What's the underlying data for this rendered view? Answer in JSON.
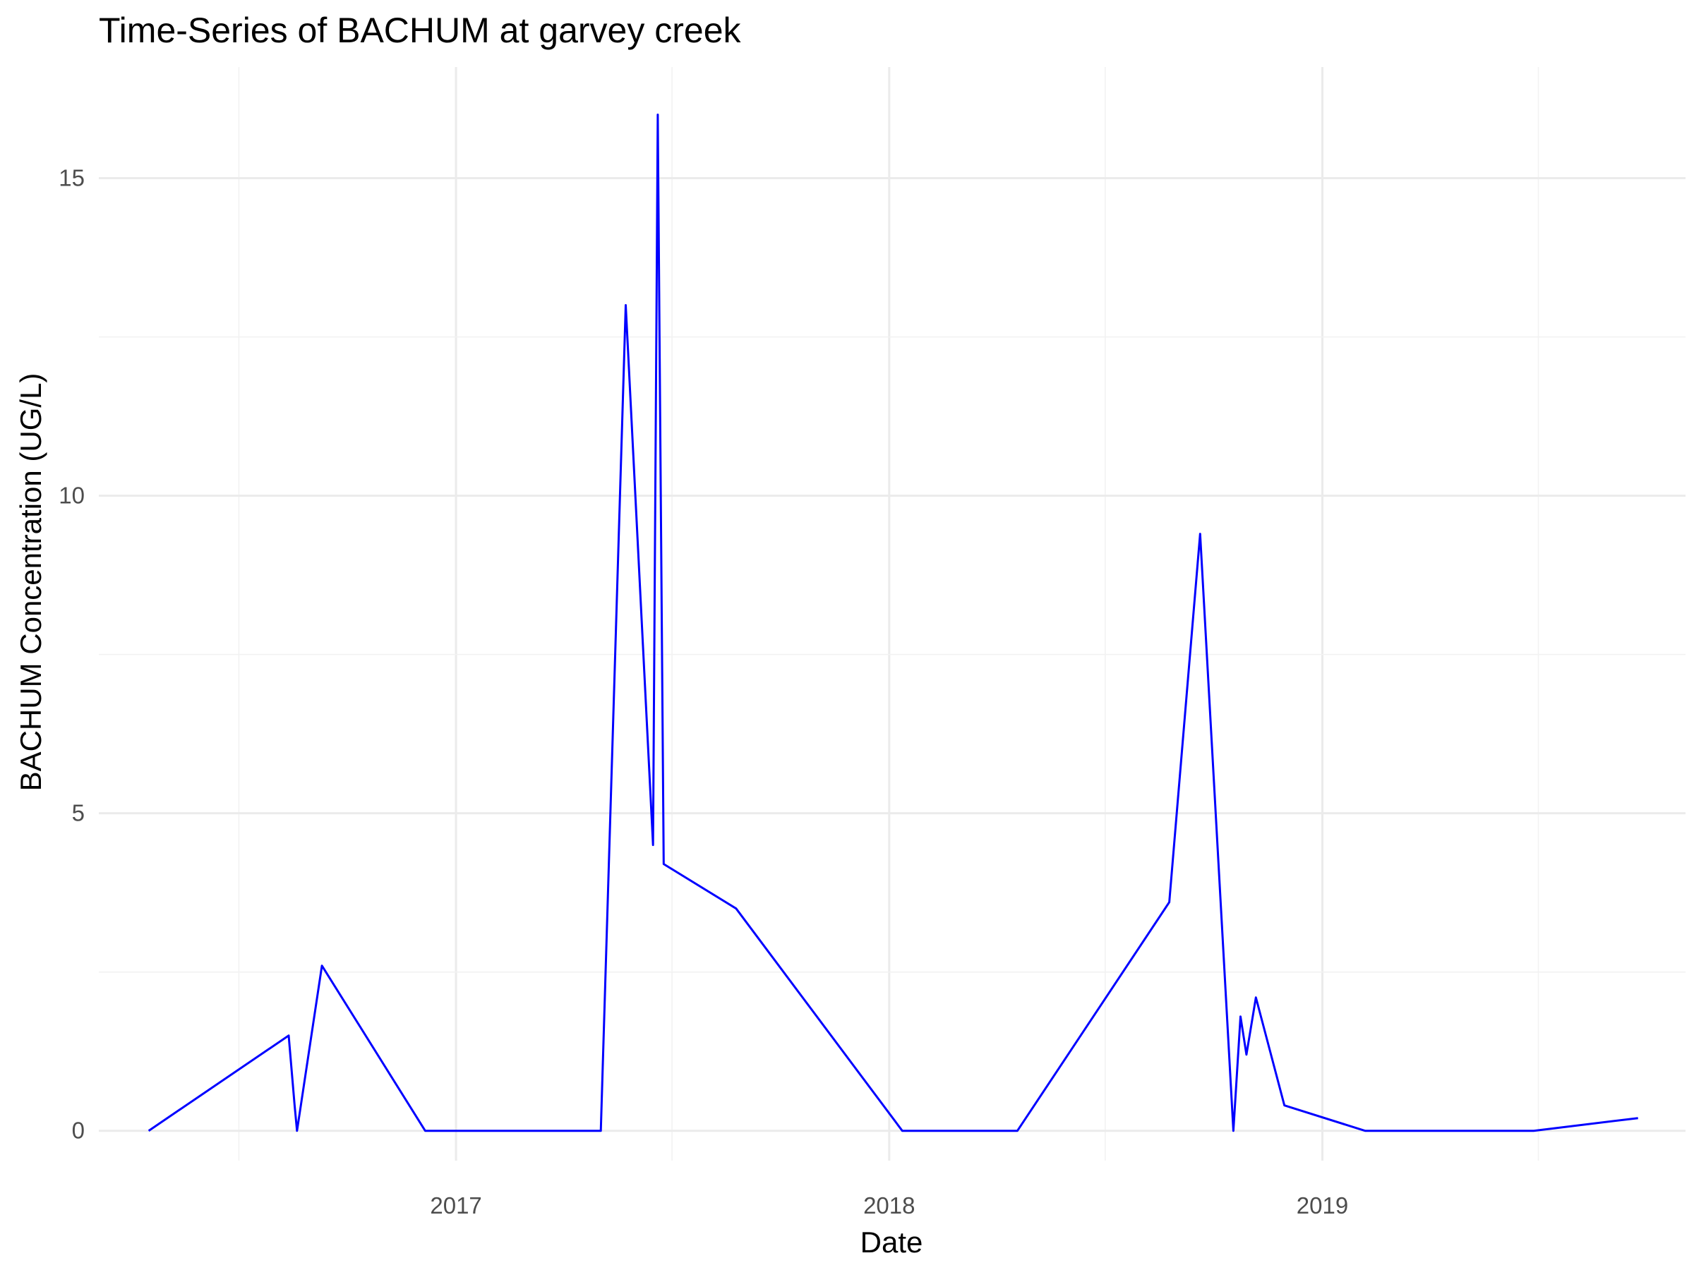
{
  "chart_data": {
    "type": "line",
    "title": "Time-Series of BACHUM at garvey creek",
    "xlabel": "Date",
    "ylabel": "BACHUM Concentration (UG/L)",
    "x_ticks": [
      "2017",
      "2018",
      "2019"
    ],
    "y_ticks": [
      "0",
      "5",
      "10",
      "15"
    ],
    "xlim": [
      "2016-03-06",
      "2019-11-03"
    ],
    "ylim": [
      -0.47,
      16.75
    ],
    "grid": true,
    "line_color": "#0000ff",
    "series": [
      {
        "x": [
          "2016-04-17",
          "2016-08-13",
          "2016-08-18",
          "2016-08-20",
          "2016-09-10",
          "2016-12-06",
          "2017-05-03",
          "2017-05-24",
          "2017-06-16",
          "2017-06-20",
          "2017-06-25",
          "2017-08-25",
          "2018-01-12",
          "2018-04-19",
          "2018-08-25",
          "2018-09-20",
          "2018-10-18",
          "2018-10-24",
          "2018-10-29",
          "2018-11-06",
          "2018-11-30",
          "2019-02-06",
          "2019-06-28",
          "2019-09-24"
        ],
        "y": [
          0.0,
          1.5,
          0.4,
          0.0,
          2.6,
          0.0,
          0.0,
          13.0,
          4.5,
          16.0,
          4.2,
          3.5,
          0.0,
          0.0,
          3.6,
          9.4,
          0.0,
          1.8,
          1.2,
          2.1,
          0.4,
          0.0,
          0.0,
          0.2
        ]
      }
    ]
  }
}
